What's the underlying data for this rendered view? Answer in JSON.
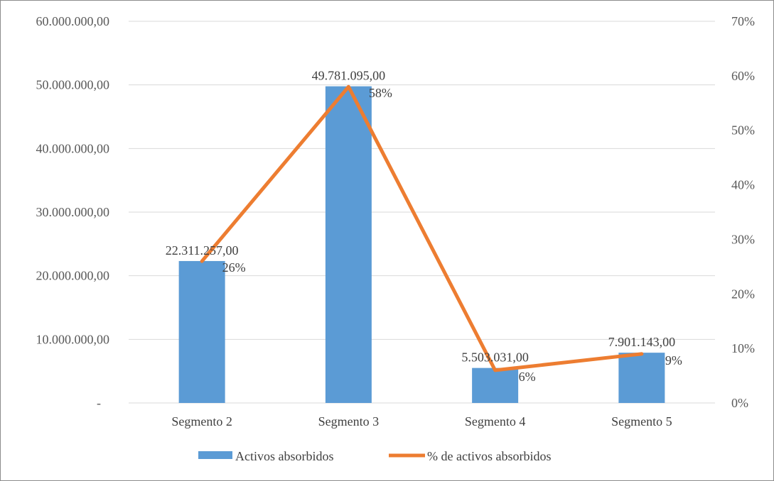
{
  "chart_data": {
    "type": "bar",
    "categories": [
      "Segmento 2",
      "Segmento 3",
      "Segmento 4",
      "Segmento 5"
    ],
    "series": [
      {
        "name": "Activos absorbidos",
        "kind": "bar",
        "axis": "left",
        "values": [
          22311257,
          49781095,
          5503031,
          7901143
        ],
        "labels": [
          "22.311.257,00",
          "49.781.095,00",
          "5.503.031,00",
          "7.901.143,00"
        ],
        "color": "#5b9bd5"
      },
      {
        "name": "% de activos absorbidos",
        "kind": "line",
        "axis": "right",
        "values": [
          26,
          58,
          6,
          9
        ],
        "labels": [
          "26%",
          "58%",
          "6%",
          "9%"
        ],
        "color": "#ed7d31"
      }
    ],
    "y_left": {
      "range": [
        0,
        60000000
      ],
      "ticks": [
        "-",
        "10.000.000,00",
        "20.000.000,00",
        "30.000.000,00",
        "40.000.000,00",
        "50.000.000,00",
        "60.000.000,00"
      ]
    },
    "y_right": {
      "range": [
        0,
        70
      ],
      "ticks": [
        "0%",
        "10%",
        "20%",
        "30%",
        "40%",
        "50%",
        "60%",
        "70%"
      ]
    },
    "grid": true,
    "legend_position": "bottom",
    "title": "",
    "xlabel": "",
    "ylabel": ""
  }
}
